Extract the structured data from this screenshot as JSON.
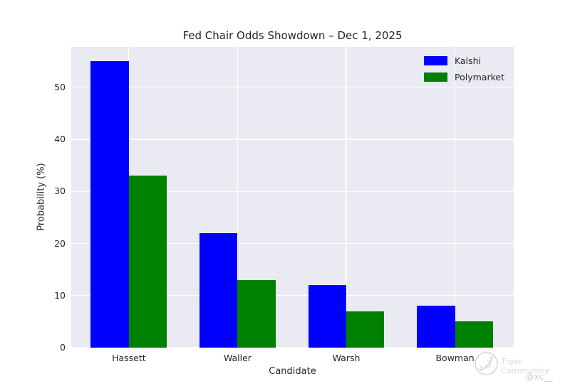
{
  "chart_data": {
    "type": "bar",
    "title": "Fed Chair Odds Showdown – Dec 1, 2025",
    "xlabel": "Candidate",
    "ylabel": "Probability (%)",
    "categories": [
      "Hassett",
      "Waller",
      "Warsh",
      "Bowman"
    ],
    "series": [
      {
        "name": "Kalshi",
        "color": "#0000ff",
        "values": [
          55,
          22,
          12,
          8
        ]
      },
      {
        "name": "Polymarket",
        "color": "#008000",
        "values": [
          33,
          13,
          7,
          5
        ]
      }
    ],
    "yticks": [
      0,
      10,
      20,
      30,
      40,
      50
    ],
    "ylim": [
      0,
      57.75
    ],
    "xlim": [
      -0.53,
      3.54
    ],
    "bar_width": 0.35,
    "grid": true,
    "legend_position": "upper right",
    "colors": {
      "plot_background": "#eaeaf2",
      "grid": "#ffffff",
      "text": "#262626"
    }
  },
  "watermark": {
    "brand": "Tiger Community",
    "handle": "@xc__",
    "color": "#d6d8de"
  }
}
